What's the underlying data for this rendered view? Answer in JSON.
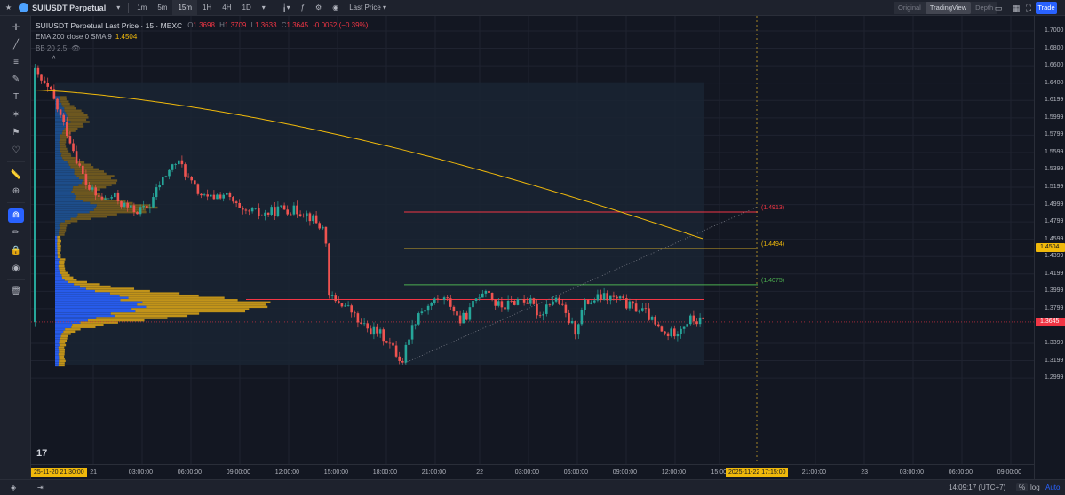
{
  "header": {
    "symbol": "SUIUSDT Perpetual",
    "intervals": [
      "1m",
      "5m",
      "15m",
      "1H",
      "4H",
      "1D"
    ],
    "active_interval": "15m",
    "price_type": "Last Price",
    "view_tabs": [
      "Original",
      "TradingView",
      "Depth"
    ],
    "active_view": "TradingView",
    "trade_label": "Trade",
    "icons": [
      "star-icon",
      "symbol-logo-icon",
      "chevron-down-icon",
      "candle-type-icon",
      "indicator-icon",
      "settings-icon",
      "camera-icon",
      "layout-icon",
      "calendar-icon",
      "fullscreen-icon"
    ]
  },
  "legend": {
    "title": "SUIUSDT Perpetual Last Price · 15 · MEXC",
    "ohlc": [
      {
        "k": "O",
        "v": "1.3698"
      },
      {
        "k": "H",
        "v": "1.3709"
      },
      {
        "k": "L",
        "v": "1.3633"
      },
      {
        "k": "C",
        "v": "1.3645"
      }
    ],
    "change": "-0.0052 (−0.39%)",
    "ema_label": "EMA 200 close 0 SMA 9",
    "ema_value": "1.4504",
    "bb_label": "BB 20 2.5"
  },
  "price_scale": {
    "labels": [
      "1.7000",
      "1.6800",
      "1.6600",
      "1.6400",
      "1.6199",
      "1.5999",
      "1.5799",
      "1.5599",
      "1.5399",
      "1.5199",
      "1.4999",
      "1.4799",
      "1.4599",
      "1.4399",
      "1.4199",
      "1.3999",
      "1.3799",
      "1.3599",
      "1.3399",
      "1.3199",
      "1.2999"
    ],
    "ema_badge": "1.4504",
    "last_badge": "1.3645"
  },
  "time_axis": {
    "labels": [
      "21",
      "03:00:00",
      "06:00:00",
      "09:00:00",
      "12:00:00",
      "15:00:00",
      "18:00:00",
      "21:00:00",
      "22",
      "03:00:00",
      "06:00:00",
      "09:00:00",
      "12:00:00",
      "15:00",
      "21:00:00",
      "23",
      "03:00:00",
      "06:00:00",
      "09:00:00"
    ],
    "left_badge": "25-11-20   21:30:00",
    "right_badge": "2025-11-22   17:15:00"
  },
  "annotations": {
    "upper": "(1.4913)",
    "mid": "(1.4494)",
    "lower": "(1.4075)"
  },
  "bottom": {
    "time": "14:09:17 (UTC+7)",
    "percent": "%",
    "log": "log",
    "auto": "Auto"
  },
  "colors": {
    "up": "#26a69a",
    "down": "#ef5350",
    "ema": "#f0b90b",
    "profile_blue": "#2962ff",
    "profile_gold": "#d4a017",
    "upper_line": "#f23645",
    "lower_line": "#4caf50"
  },
  "chart_data": {
    "type": "candlestick",
    "title": "SUIUSDT Perpetual Last Price · 15 · MEXC",
    "xlabel": "",
    "ylabel": "",
    "ylim": [
      1.29,
      1.71
    ],
    "x_range": [
      "2025-11-20 21:30",
      "2025-11-23 09:00"
    ],
    "grid": true,
    "series": [
      {
        "name": "EMA 200 close 0 SMA 9",
        "last": 1.4504
      },
      {
        "name": "Price",
        "last": 1.3645,
        "open": 1.3698,
        "high": 1.3709,
        "low": 1.3633
      }
    ],
    "levels": [
      {
        "label": "(1.4913)",
        "value": 1.4913
      },
      {
        "label": "(1.4494)",
        "value": 1.4494
      },
      {
        "label": "(1.4075)",
        "value": 1.4075
      },
      {
        "label": "",
        "value": 1.3905
      }
    ]
  }
}
